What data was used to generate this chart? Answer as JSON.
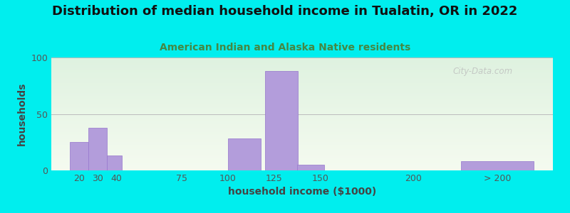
{
  "title": "Distribution of median household income in Tualatin, OR in 2022",
  "subtitle": "American Indian and Alaska Native residents",
  "xlabel": "household income ($1000)",
  "ylabel": "households",
  "background_outer": "#00EEEE",
  "bar_color": "#b39ddb",
  "bar_edge_color": "#9575cd",
  "ylim": [
    0,
    100
  ],
  "yticks": [
    0,
    50,
    100
  ],
  "bar_lefts": [
    15,
    25,
    35,
    90,
    100,
    120,
    137,
    185,
    225
  ],
  "bar_widths": [
    10,
    10,
    8,
    10,
    18,
    18,
    15,
    15,
    40
  ],
  "bar_heights": [
    25,
    38,
    13,
    0,
    28,
    88,
    5,
    0,
    8
  ],
  "xtick_labels": [
    "20",
    "30",
    "40",
    "75",
    "100",
    "125",
    "150",
    "200",
    "> 200"
  ],
  "xtick_positions": [
    20,
    30,
    40,
    75,
    100,
    125,
    150,
    200,
    245
  ],
  "xlim": [
    5,
    275
  ],
  "title_fontsize": 13,
  "subtitle_fontsize": 10,
  "axis_label_fontsize": 10,
  "tick_fontsize": 9,
  "watermark_text": "City-Data.com",
  "subtitle_color": "#448844",
  "title_color": "#111111",
  "tick_color": "#555555",
  "label_color": "#444444"
}
